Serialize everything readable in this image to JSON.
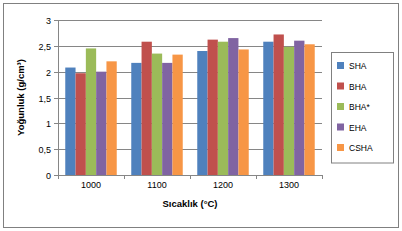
{
  "chart_data": {
    "type": "bar",
    "x_label": "Sıcaklık (°C)",
    "y_label": "Yoğunluk (g/cm³)",
    "categories": [
      "1000",
      "1100",
      "1200",
      "1300"
    ],
    "series": [
      {
        "name": "SHA",
        "color": "#4f81bd",
        "values": [
          2.08,
          2.17,
          2.4,
          2.58
        ]
      },
      {
        "name": "BHA",
        "color": "#c0504d",
        "values": [
          1.97,
          2.58,
          2.62,
          2.72
        ]
      },
      {
        "name": "BHA*",
        "color": "#9bbb59",
        "values": [
          2.45,
          2.35,
          2.58,
          2.48
        ]
      },
      {
        "name": "EHA",
        "color": "#8064a2",
        "values": [
          2.0,
          2.17,
          2.65,
          2.6
        ]
      },
      {
        "name": "CSHA",
        "color": "#f79646",
        "values": [
          2.2,
          2.33,
          2.43,
          2.53
        ]
      }
    ],
    "ylim": [
      0,
      3
    ],
    "yticks": [
      0,
      {
        "value": 0.5,
        "label": "0,5"
      },
      1,
      {
        "value": 1.5,
        "label": "1,5"
      },
      2,
      {
        "value": 2.5,
        "label": "2,5"
      },
      3
    ],
    "grid": true,
    "legend": "right"
  }
}
